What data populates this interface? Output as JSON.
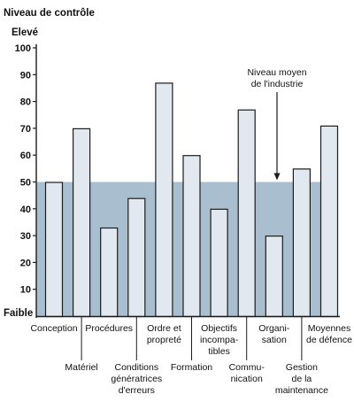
{
  "chart_data": {
    "type": "bar",
    "ylabel": "Niveau de contrôle",
    "ylabel_high": "Elevé",
    "ylabel_low": "Faible",
    "ylim": [
      0,
      100
    ],
    "yticks": [
      10,
      20,
      30,
      40,
      50,
      60,
      70,
      80,
      90,
      100
    ],
    "categories": [
      [
        "Conception"
      ],
      [
        "Matériel"
      ],
      [
        "Procédures"
      ],
      [
        "Conditions",
        "génératrices",
        "d'erreurs"
      ],
      [
        "Ordre et",
        "propreté"
      ],
      [
        "Formation"
      ],
      [
        "Objectifs",
        "incompa-",
        "tibles"
      ],
      [
        "Commu-",
        "nication"
      ],
      [
        "Organi-",
        "sation"
      ],
      [
        "Gestion",
        "de la",
        "maintenance"
      ],
      [
        "Moyennes",
        "de défence"
      ]
    ],
    "values": [
      50,
      70,
      33,
      44,
      87,
      60,
      40,
      77,
      30,
      55,
      71
    ],
    "industry_average": {
      "value": 50,
      "label": [
        "Niveau moyen",
        "de l'industrie"
      ]
    },
    "colors": {
      "bar_fill": "#e2e8ef",
      "bar_stroke": "#1c1c1c",
      "average_band": "#a9bfcf",
      "axis": "#1c1c1c"
    },
    "grid": false,
    "legend": "none"
  }
}
